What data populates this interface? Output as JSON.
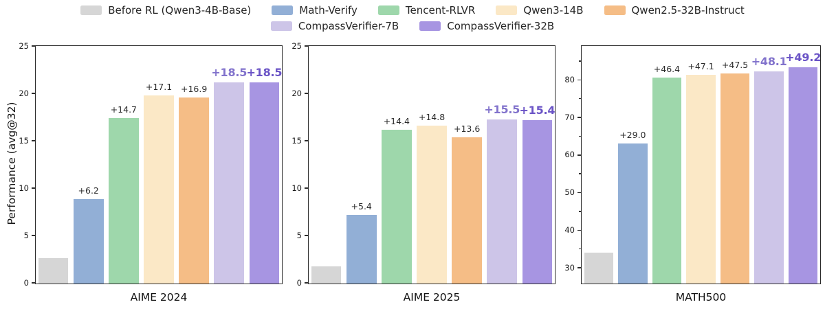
{
  "figure": {
    "ylabel": "Performance (avg@32)"
  },
  "colors": {
    "bars": [
      "#d6d6d6",
      "#92afd6",
      "#9ed7ab",
      "#fbe8c6",
      "#f5bd86",
      "#cdc5e8",
      "#a795e2"
    ],
    "annotation_default": "#2b2b2b",
    "annotation_highlight_7b": "#8273cc",
    "annotation_highlight_32b": "#6a53c6",
    "axis": "#2b2b2b",
    "tick_label": "#1a1a1a"
  },
  "legend": {
    "row1": [
      {
        "label": "Before RL (Qwen3-4B-Base)",
        "color_index": 0
      },
      {
        "label": "Math-Verify",
        "color_index": 1
      },
      {
        "label": "Tencent-RLVR",
        "color_index": 2
      },
      {
        "label": "Qwen3-14B",
        "color_index": 3
      },
      {
        "label": "Qwen2.5-32B-Instruct",
        "color_index": 4
      }
    ],
    "row2": [
      {
        "label": "CompassVerifier-7B",
        "color_index": 5
      },
      {
        "label": "CompassVerifier-32B",
        "color_index": 6
      }
    ]
  },
  "chart_data": [
    {
      "type": "bar",
      "title": "AIME 2024",
      "ylabel": "Performance (avg@32)",
      "categories": [
        "Before RL (Qwen3-4B-Base)",
        "Math-Verify",
        "Tencent-RLVR",
        "Qwen3-14B",
        "Qwen2.5-32B-Instruct",
        "CompassVerifier-7B",
        "CompassVerifier-32B"
      ],
      "values": [
        2.7,
        8.9,
        17.4,
        19.8,
        19.6,
        21.2,
        21.2
      ],
      "annotations": [
        "",
        "+6.2",
        "+14.7",
        "+17.1",
        "+16.9",
        "+18.5",
        "+18.5"
      ],
      "annotation_highlight": [
        0,
        0,
        0,
        0,
        0,
        1,
        2
      ],
      "ylim": [
        0,
        25
      ],
      "yticks": [
        0,
        5,
        10,
        15,
        20,
        25
      ],
      "yticks_minor": [],
      "grid": false,
      "legend_position": "figure-top"
    },
    {
      "type": "bar",
      "title": "AIME 2025",
      "ylabel": "Performance (avg@32)",
      "categories": [
        "Before RL (Qwen3-4B-Base)",
        "Math-Verify",
        "Tencent-RLVR",
        "Qwen3-14B",
        "Qwen2.5-32B-Instruct",
        "CompassVerifier-7B",
        "CompassVerifier-32B"
      ],
      "values": [
        1.8,
        7.2,
        16.2,
        16.6,
        15.4,
        17.3,
        17.2
      ],
      "annotations": [
        "",
        "+5.4",
        "+14.4",
        "+14.8",
        "+13.6",
        "+15.5",
        "+15.4"
      ],
      "annotation_highlight": [
        0,
        0,
        0,
        0,
        0,
        1,
        2
      ],
      "ylim": [
        0,
        25
      ],
      "yticks": [
        0,
        5,
        10,
        15,
        20,
        25
      ],
      "yticks_minor": [],
      "grid": false,
      "legend_position": "figure-top"
    },
    {
      "type": "bar",
      "title": "MATH500",
      "ylabel": "Performance (avg@32)",
      "categories": [
        "Before RL (Qwen3-4B-Base)",
        "Math-Verify",
        "Tencent-RLVR",
        "Qwen3-14B",
        "Qwen2.5-32B-Instruct",
        "CompassVerifier-7B",
        "CompassVerifier-32B"
      ],
      "values": [
        34.2,
        63.2,
        80.6,
        81.3,
        81.7,
        82.3,
        83.4
      ],
      "annotations": [
        "",
        "+29.0",
        "+46.4",
        "+47.1",
        "+47.5",
        "+48.1",
        "+49.2"
      ],
      "annotation_highlight": [
        0,
        0,
        0,
        0,
        0,
        1,
        2
      ],
      "ylim": [
        26,
        89
      ],
      "yticks": [
        30,
        40,
        50,
        60,
        70,
        80
      ],
      "yticks_minor": [
        35,
        45,
        55,
        65,
        75,
        85
      ],
      "grid": false,
      "legend_position": "figure-top"
    }
  ]
}
